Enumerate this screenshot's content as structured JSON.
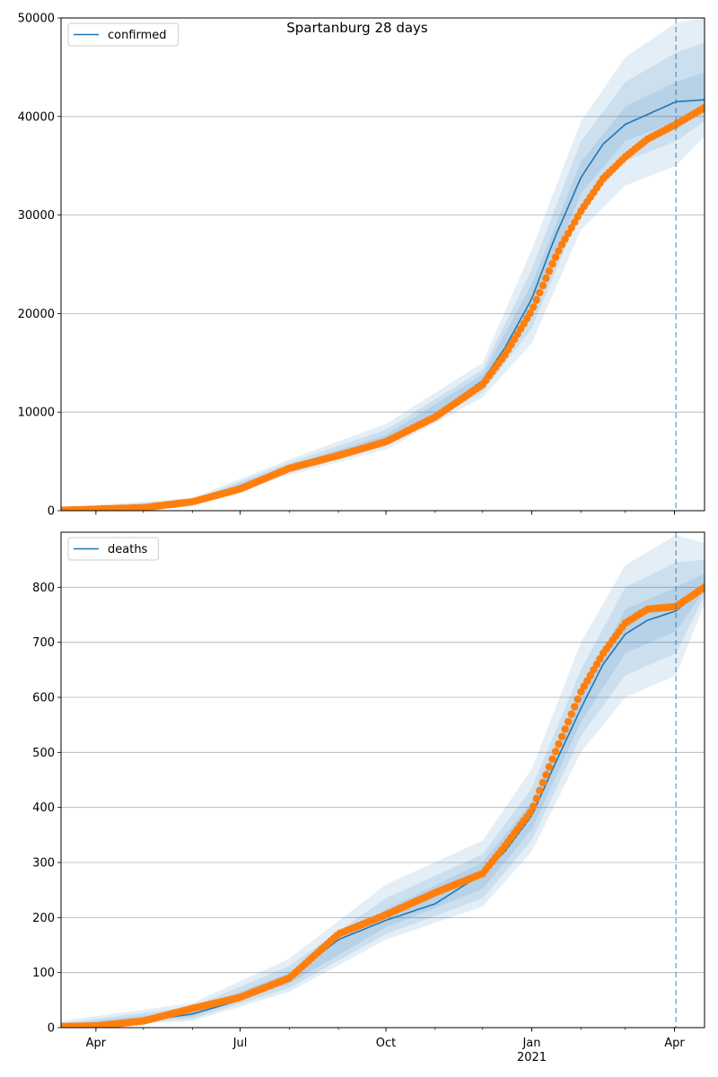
{
  "figure": {
    "title": "Spartanburg 28 days"
  },
  "chart_data": [
    {
      "type": "line",
      "name": "confirmed-panel",
      "legend": [
        "confirmed"
      ],
      "legend_placement": "top-left",
      "grid_y": true,
      "x_range": [
        "2020-03-10",
        "2021-04-20"
      ],
      "ylim": [
        0,
        50000
      ],
      "yticks": [
        0,
        10000,
        20000,
        30000,
        40000,
        50000
      ],
      "ytick_labels": [
        "0",
        "10000",
        "20000",
        "30000",
        "40000",
        "50000"
      ],
      "forecast_start": "2021-04-02",
      "series": [
        {
          "name": "confirmed",
          "role": "model-median",
          "color": "#1f77b4",
          "x": [
            "2020-03-10",
            "2020-04-01",
            "2020-05-01",
            "2020-06-01",
            "2020-07-01",
            "2020-08-01",
            "2020-09-01",
            "2020-10-01",
            "2020-11-01",
            "2020-12-01",
            "2020-12-15",
            "2021-01-01",
            "2021-01-15",
            "2021-02-01",
            "2021-02-15",
            "2021-03-01",
            "2021-03-15",
            "2021-04-02",
            "2021-04-20"
          ],
          "y": [
            50,
            150,
            300,
            900,
            2200,
            4300,
            5800,
            7300,
            9700,
            13200,
            16500,
            21500,
            27500,
            33800,
            37200,
            39200,
            40200,
            41500,
            41700
          ]
        },
        {
          "name": "observed confirmed",
          "role": "observed",
          "color": "#ff7f0e",
          "x": [
            "2020-03-10",
            "2020-04-01",
            "2020-05-01",
            "2020-06-01",
            "2020-07-01",
            "2020-08-01",
            "2020-09-01",
            "2020-10-01",
            "2020-11-01",
            "2020-12-01",
            "2020-12-15",
            "2021-01-01",
            "2021-01-15",
            "2021-01-20",
            "2021-02-01",
            "2021-02-15",
            "2021-03-01",
            "2021-03-15",
            "2021-04-02",
            "2021-04-20"
          ],
          "y": [
            50,
            150,
            300,
            900,
            2200,
            4300,
            5600,
            7000,
            9500,
            12800,
            15800,
            20300,
            25400,
            27000,
            30400,
            33700,
            35900,
            37700,
            39200,
            40900
          ]
        }
      ],
      "bands": [
        {
          "label": "outer",
          "opacity": 0.12,
          "x": [
            "2020-03-10",
            "2020-06-01",
            "2020-08-01",
            "2020-10-01",
            "2020-12-01",
            "2021-01-01",
            "2021-02-01",
            "2021-03-01",
            "2021-04-02",
            "2021-04-20"
          ],
          "lower": [
            0,
            600,
            3600,
            6200,
            11500,
            17000,
            28500,
            33000,
            35000,
            38000
          ],
          "upper": [
            300,
            1300,
            5200,
            8800,
            15000,
            26500,
            39500,
            46000,
            49500,
            50000
          ]
        },
        {
          "label": "middle",
          "opacity": 0.12,
          "x": [
            "2020-03-10",
            "2020-06-01",
            "2020-08-01",
            "2020-10-01",
            "2020-12-01",
            "2021-01-01",
            "2021-02-01",
            "2021-03-01",
            "2021-04-02",
            "2021-04-20"
          ],
          "lower": [
            10,
            700,
            3800,
            6600,
            12000,
            18500,
            30500,
            35500,
            37500,
            39500
          ],
          "upper": [
            200,
            1100,
            4900,
            8200,
            14300,
            24500,
            37500,
            43500,
            46500,
            47500
          ]
        },
        {
          "label": "inner",
          "opacity": 0.12,
          "x": [
            "2020-03-10",
            "2020-06-01",
            "2020-08-01",
            "2020-10-01",
            "2020-12-01",
            "2021-01-01",
            "2021-02-01",
            "2021-03-01",
            "2021-04-02",
            "2021-04-20"
          ],
          "lower": [
            30,
            800,
            4000,
            6900,
            12600,
            20000,
            32200,
            37500,
            39500,
            40500
          ],
          "upper": [
            100,
            1000,
            4600,
            7700,
            13800,
            23000,
            35400,
            41000,
            43500,
            44500
          ]
        }
      ],
      "xticks_labeled": [],
      "xticks_major": [
        "2020-04-01",
        "2020-07-01",
        "2020-10-01",
        "2021-01-01",
        "2021-04-01"
      ]
    },
    {
      "type": "line",
      "name": "deaths-panel",
      "legend": [
        "deaths"
      ],
      "legend_placement": "top-left",
      "grid_y": true,
      "x_range": [
        "2020-03-10",
        "2021-04-20"
      ],
      "ylim": [
        0,
        900
      ],
      "yticks": [
        0,
        100,
        200,
        300,
        400,
        500,
        600,
        700,
        800
      ],
      "ytick_labels": [
        "0",
        "100",
        "200",
        "300",
        "400",
        "500",
        "600",
        "700",
        "800"
      ],
      "forecast_start": "2021-04-02",
      "series": [
        {
          "name": "deaths",
          "role": "model-median",
          "color": "#1f77b4",
          "x": [
            "2020-03-10",
            "2020-04-01",
            "2020-05-01",
            "2020-06-01",
            "2020-07-01",
            "2020-08-01",
            "2020-09-01",
            "2020-10-01",
            "2020-11-01",
            "2020-12-01",
            "2020-12-15",
            "2021-01-01",
            "2021-01-15",
            "2021-02-01",
            "2021-02-15",
            "2021-03-01",
            "2021-03-15",
            "2021-04-02",
            "2021-04-20"
          ],
          "y": [
            2,
            3,
            12,
            25,
            50,
            90,
            160,
            195,
            225,
            280,
            320,
            385,
            475,
            580,
            660,
            715,
            740,
            757,
            800
          ]
        },
        {
          "name": "observed deaths",
          "role": "observed",
          "color": "#ff7f0e",
          "x": [
            "2020-03-10",
            "2020-04-01",
            "2020-05-01",
            "2020-06-01",
            "2020-07-01",
            "2020-08-01",
            "2020-09-01",
            "2020-10-01",
            "2020-11-01",
            "2020-12-01",
            "2020-12-15",
            "2021-01-01",
            "2021-01-15",
            "2021-02-01",
            "2021-02-15",
            "2021-03-01",
            "2021-03-15",
            "2021-04-02",
            "2021-04-20"
          ],
          "y": [
            2,
            3,
            12,
            35,
            55,
            90,
            170,
            205,
            245,
            280,
            330,
            395,
            495,
            610,
            680,
            735,
            760,
            765,
            800
          ]
        }
      ],
      "bands": [
        {
          "label": "outer",
          "opacity": 0.12,
          "x": [
            "2020-03-10",
            "2020-06-01",
            "2020-08-01",
            "2020-10-01",
            "2020-12-01",
            "2021-01-01",
            "2021-02-01",
            "2021-03-01",
            "2021-04-02",
            "2021-04-20"
          ],
          "lower": [
            0,
            12,
            65,
            160,
            220,
            320,
            500,
            600,
            640,
            770
          ],
          "upper": [
            12,
            45,
            125,
            260,
            340,
            470,
            700,
            840,
            895,
            880
          ]
        },
        {
          "label": "middle",
          "opacity": 0.12,
          "x": [
            "2020-03-10",
            "2020-06-01",
            "2020-08-01",
            "2020-10-01",
            "2020-12-01",
            "2021-01-01",
            "2021-02-01",
            "2021-03-01",
            "2021-04-02",
            "2021-04-20"
          ],
          "lower": [
            0,
            16,
            72,
            170,
            235,
            340,
            530,
            640,
            680,
            785
          ],
          "upper": [
            8,
            38,
            112,
            235,
            315,
            435,
            650,
            800,
            845,
            850
          ]
        },
        {
          "label": "inner",
          "opacity": 0.12,
          "x": [
            "2020-03-10",
            "2020-06-01",
            "2020-08-01",
            "2020-10-01",
            "2020-12-01",
            "2021-01-01",
            "2021-02-01",
            "2021-03-01",
            "2021-04-02",
            "2021-04-20"
          ],
          "lower": [
            1,
            20,
            80,
            182,
            252,
            360,
            555,
            680,
            720,
            795
          ],
          "upper": [
            5,
            32,
            100,
            215,
            300,
            410,
            610,
            760,
            800,
            825
          ]
        }
      ],
      "xticks_labeled": [
        "2020-04-01",
        "2020-07-01",
        "2020-10-01",
        "2021-01-01",
        "2021-04-01"
      ],
      "xtick_labels": [
        "Apr",
        "Jul",
        "Oct",
        "Jan",
        "Apr"
      ],
      "xtick_sublabels": [
        "",
        "",
        "",
        "2021",
        ""
      ]
    }
  ]
}
